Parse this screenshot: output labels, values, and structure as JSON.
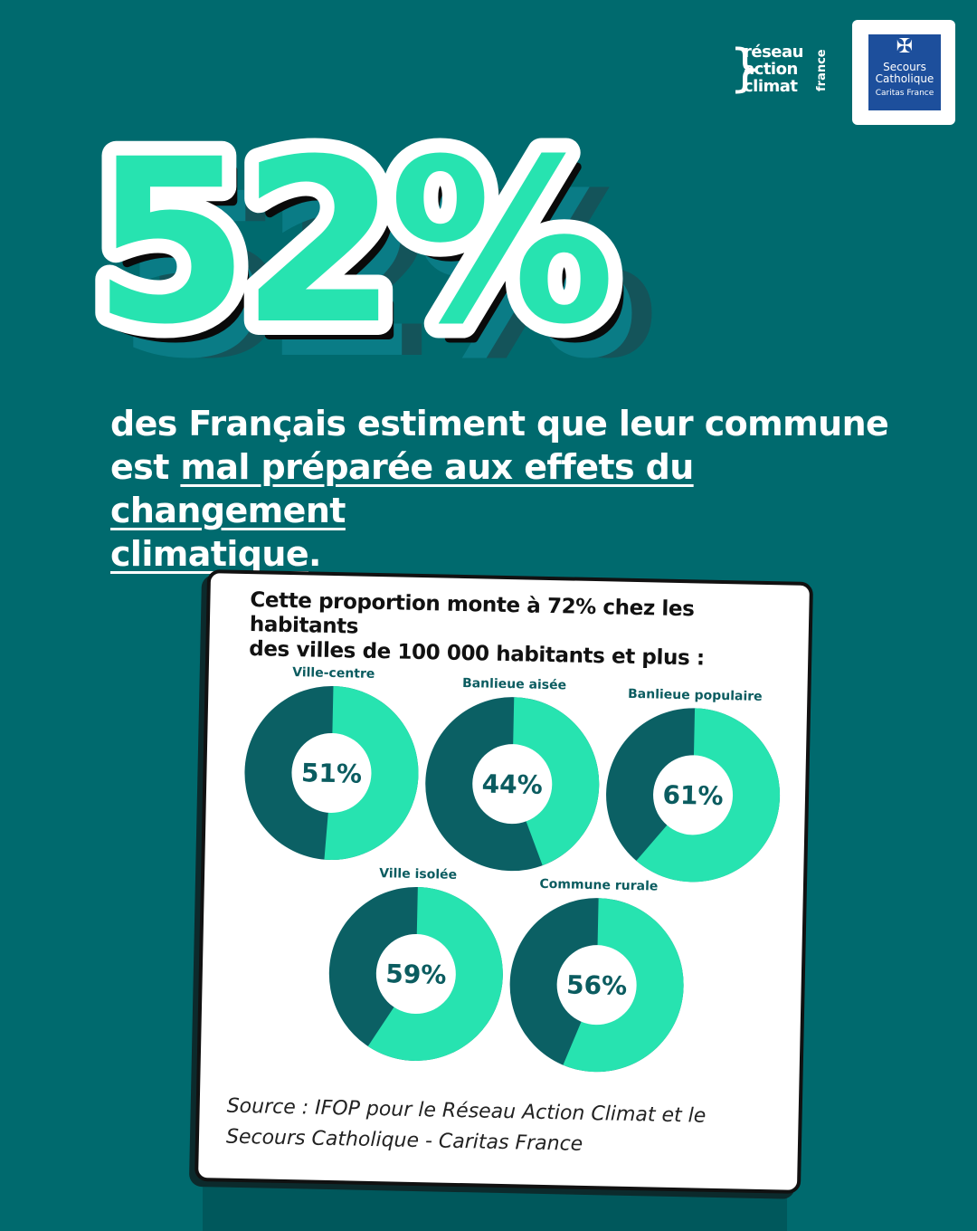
{
  "logos": {
    "rac_lines": [
      "réseau",
      "action",
      "climat"
    ],
    "rac_vertical": "france",
    "sc_line1": "Secours",
    "sc_line2": "Catholique",
    "sc_line3": "Caritas France"
  },
  "headline": {
    "big_value": "52%",
    "subtitle_plain1": "des Français estiment que leur commune",
    "subtitle_plain2": "est ",
    "subtitle_underlined1": "mal préparée aux effets du changement",
    "subtitle_underlined2": "climatique",
    "subtitle_end": "."
  },
  "colors": {
    "background": "#006a6e",
    "accent_green": "#27e3b0",
    "dark_teal": "#0b6064"
  },
  "card": {
    "title_line1": "Cette proportion monte à 72% chez les habitants",
    "title_line2": "des villes de 100 000 habitants et plus :",
    "source": "Source : IFOP pour le Réseau Action Climat et le Secours Catholique - Caritas France"
  },
  "chart_data": {
    "type": "pie",
    "variant": "donut",
    "categories": [
      "Ville-centre",
      "Banlieue aisée",
      "Banlieue populaire",
      "Ville isolée",
      "Commune rurale"
    ],
    "values": [
      51,
      44,
      61,
      59,
      56
    ],
    "labels": [
      "51%",
      "44%",
      "61%",
      "59%",
      "56%"
    ],
    "unit": "%"
  }
}
